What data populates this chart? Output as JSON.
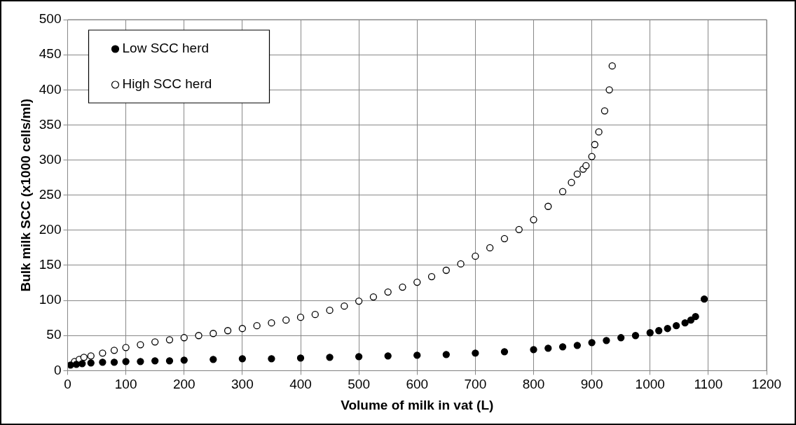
{
  "chart_data": {
    "type": "scatter",
    "xlabel": "Volume of milk in vat (L)",
    "ylabel": "Bulk milk SCC (x1000 cells/ml)",
    "xlim": [
      0,
      1200
    ],
    "xticks": [
      0,
      100,
      200,
      300,
      400,
      500,
      600,
      700,
      800,
      900,
      1000,
      1100,
      1200
    ],
    "ylim": [
      0,
      500
    ],
    "yticks": [
      0,
      50,
      100,
      150,
      200,
      250,
      300,
      350,
      400,
      450,
      500
    ],
    "grid": true,
    "legend": "top left",
    "marker": "circle",
    "series": [
      {
        "name": "Low SCC herd",
        "color": "#000000",
        "x": [
          5,
          15,
          25,
          40,
          60,
          80,
          100,
          125,
          150,
          175,
          200,
          250,
          300,
          350,
          400,
          450,
          500,
          550,
          600,
          650,
          700,
          750,
          800,
          825,
          850,
          875,
          900,
          925,
          950,
          975,
          1000,
          1015,
          1030,
          1045,
          1060,
          1070,
          1078,
          1093
        ],
        "values": [
          8,
          9,
          10,
          11,
          12,
          12,
          13,
          13,
          14,
          14,
          15,
          16,
          17,
          17,
          18,
          19,
          20,
          21,
          22,
          23,
          25,
          27,
          30,
          32,
          34,
          36,
          40,
          43,
          47,
          50,
          54,
          57,
          60,
          64,
          68,
          72,
          77,
          102
        ]
      },
      {
        "name": "High SCC herd",
        "color": "#000000",
        "x": [
          12,
          20,
          28,
          40,
          60,
          80,
          100,
          125,
          150,
          175,
          200,
          225,
          250,
          275,
          300,
          325,
          350,
          375,
          400,
          425,
          450,
          475,
          500,
          525,
          550,
          575,
          600,
          625,
          650,
          675,
          700,
          725,
          750,
          775,
          800,
          825,
          850,
          865,
          875,
          885,
          890,
          900,
          905,
          912,
          922,
          930,
          935
        ],
        "values": [
          13,
          16,
          19,
          21,
          25,
          29,
          33,
          37,
          41,
          44,
          47,
          50,
          53,
          57,
          60,
          64,
          68,
          72,
          76,
          80,
          86,
          92,
          99,
          105,
          112,
          119,
          126,
          134,
          143,
          152,
          163,
          175,
          188,
          201,
          215,
          234,
          255,
          268,
          280,
          287,
          292,
          305,
          322,
          340,
          370,
          400,
          434
        ]
      }
    ]
  }
}
